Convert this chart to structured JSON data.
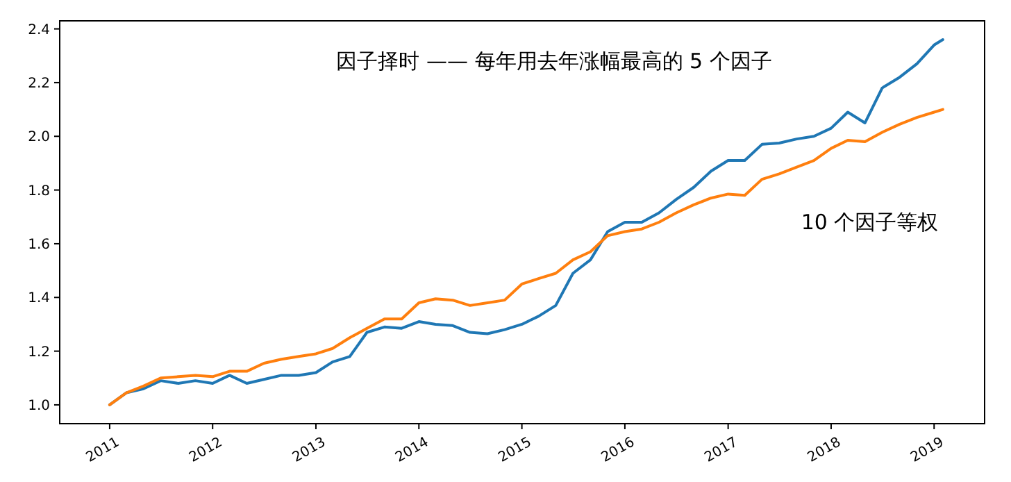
{
  "chart_data": {
    "type": "line",
    "x": [
      "2011-01",
      "2011-03",
      "2011-05",
      "2011-07",
      "2011-09",
      "2011-11",
      "2012-01",
      "2012-03",
      "2012-05",
      "2012-07",
      "2012-09",
      "2012-11",
      "2013-01",
      "2013-03",
      "2013-05",
      "2013-07",
      "2013-09",
      "2013-11",
      "2014-01",
      "2014-03",
      "2014-05",
      "2014-07",
      "2014-09",
      "2014-11",
      "2015-01",
      "2015-03",
      "2015-05",
      "2015-07",
      "2015-09",
      "2015-11",
      "2016-01",
      "2016-03",
      "2016-05",
      "2016-07",
      "2016-09",
      "2016-11",
      "2017-01",
      "2017-03",
      "2017-05",
      "2017-07",
      "2017-09",
      "2017-11",
      "2018-01",
      "2018-03",
      "2018-05",
      "2018-07",
      "2018-09",
      "2018-11",
      "2019-01",
      "2019-02"
    ],
    "xlim": [
      "2010-07-08",
      "2019-06-29"
    ],
    "xticks": [
      {
        "value": "2011-01-01",
        "label": "2011"
      },
      {
        "value": "2012-01-01",
        "label": "2012"
      },
      {
        "value": "2013-01-01",
        "label": "2013"
      },
      {
        "value": "2014-01-01",
        "label": "2014"
      },
      {
        "value": "2015-01-01",
        "label": "2015"
      },
      {
        "value": "2016-01-01",
        "label": "2016"
      },
      {
        "value": "2017-01-01",
        "label": "2017"
      },
      {
        "value": "2018-01-01",
        "label": "2018"
      },
      {
        "value": "2019-01-01",
        "label": "2019"
      }
    ],
    "ylim": [
      0.93,
      2.43
    ],
    "yticks": [
      {
        "value": 1.0,
        "label": "1.0"
      },
      {
        "value": 1.2,
        "label": "1.2"
      },
      {
        "value": 1.4,
        "label": "1.4"
      },
      {
        "value": 1.6,
        "label": "1.6"
      },
      {
        "value": 1.8,
        "label": "1.8"
      },
      {
        "value": 2.0,
        "label": "2.0"
      },
      {
        "value": 2.2,
        "label": "2.2"
      },
      {
        "value": 2.4,
        "label": "2.4"
      }
    ],
    "annotations": [
      "因子择时 —— 每年用去年涨幅最高的 5 个因子",
      "10 个因子等权"
    ],
    "series": [
      {
        "color": "#1f77b4",
        "values": [
          1.0,
          1.045,
          1.06,
          1.09,
          1.08,
          1.09,
          1.08,
          1.11,
          1.08,
          1.095,
          1.11,
          1.11,
          1.12,
          1.16,
          1.18,
          1.27,
          1.29,
          1.285,
          1.31,
          1.3,
          1.295,
          1.27,
          1.265,
          1.28,
          1.3,
          1.33,
          1.37,
          1.49,
          1.54,
          1.645,
          1.68,
          1.68,
          1.715,
          1.765,
          1.81,
          1.87,
          1.91,
          1.91,
          1.97,
          1.975,
          1.99,
          2.0,
          2.03,
          2.09,
          2.05,
          2.18,
          2.22,
          2.27,
          2.34,
          2.36
        ]
      },
      {
        "color": "#ff7f0e",
        "values": [
          1.0,
          1.045,
          1.07,
          1.1,
          1.105,
          1.11,
          1.105,
          1.125,
          1.125,
          1.155,
          1.17,
          1.18,
          1.19,
          1.21,
          1.25,
          1.285,
          1.32,
          1.32,
          1.38,
          1.395,
          1.39,
          1.37,
          1.38,
          1.39,
          1.45,
          1.47,
          1.49,
          1.54,
          1.57,
          1.63,
          1.645,
          1.655,
          1.68,
          1.715,
          1.745,
          1.77,
          1.785,
          1.78,
          1.84,
          1.86,
          1.885,
          1.91,
          1.955,
          1.985,
          1.98,
          2.015,
          2.045,
          2.07,
          2.09,
          2.1
        ]
      }
    ]
  }
}
